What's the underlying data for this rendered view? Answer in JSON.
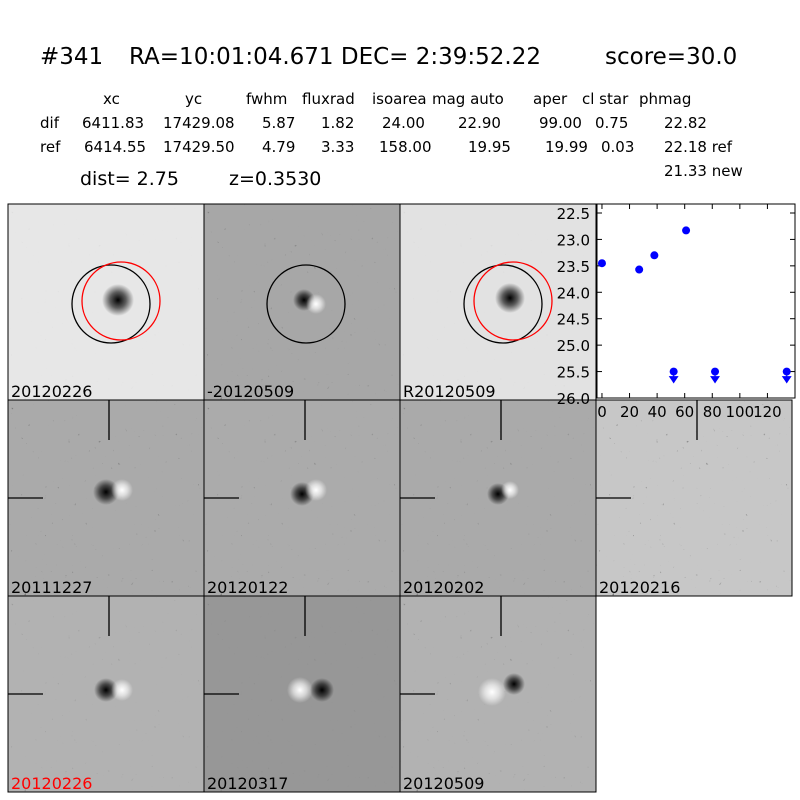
{
  "header": {
    "id": "#341",
    "coords": "RA=10:01:04.671 DEC= 2:39:52.22",
    "score": "score=30.0"
  },
  "table": {
    "columns": [
      "xc",
      "yc",
      "fwhm",
      "fluxrad",
      "isoarea",
      "mag auto",
      "aper",
      "cl star",
      "phmag"
    ],
    "rows": [
      {
        "label": "dif",
        "cells": [
          "6411.83",
          "17429.08",
          "5.87",
          "1.82",
          "24.00",
          "22.90",
          "99.00",
          "0.75",
          "22.82"
        ]
      },
      {
        "label": "ref",
        "cells": [
          "6414.55",
          "17429.50",
          "4.79",
          "3.33",
          "158.00",
          "19.95",
          "19.99",
          "0.03",
          "22.18 ref"
        ]
      }
    ],
    "extra": "21.33 new"
  },
  "dist": "dist=  2.75",
  "redshift": "z=0.3530",
  "panels": [
    {
      "label": "20120226"
    },
    {
      "label": "-20120509"
    },
    {
      "label": "R20120509"
    },
    {
      "label": "20111227"
    },
    {
      "label": "20120122"
    },
    {
      "label": "20120202"
    },
    {
      "label": "20120216"
    },
    {
      "label": "20120226",
      "label_color": "#ff0000"
    },
    {
      "label": "20120317"
    },
    {
      "label": "20120509"
    }
  ],
  "chart_data": {
    "type": "scatter",
    "y_inverted": true,
    "xlim": [
      -3.6,
      140
    ],
    "xticks": [
      0,
      20,
      40,
      60,
      80,
      100,
      120
    ],
    "ylim": [
      22.33,
      26.0
    ],
    "yticks": [
      22.5,
      {
        "value": 23,
        "label": "23.0"
      },
      23.5,
      {
        "value": 24,
        "label": "24.0"
      },
      24.5,
      {
        "value": 25,
        "label": "25.0"
      },
      25.5,
      {
        "value": 26,
        "label": "26.0"
      }
    ],
    "color": "#0000ff",
    "detections": {
      "x": [
        0,
        27,
        38,
        61
      ],
      "values": [
        23.45,
        23.57,
        23.3,
        22.83
      ],
      "errors": [
        0.05,
        0.07,
        0.05,
        0.03
      ]
    },
    "limits": {
      "x": [
        52,
        82,
        134
      ],
      "values": [
        25.5,
        25.5,
        25.5
      ]
    }
  }
}
